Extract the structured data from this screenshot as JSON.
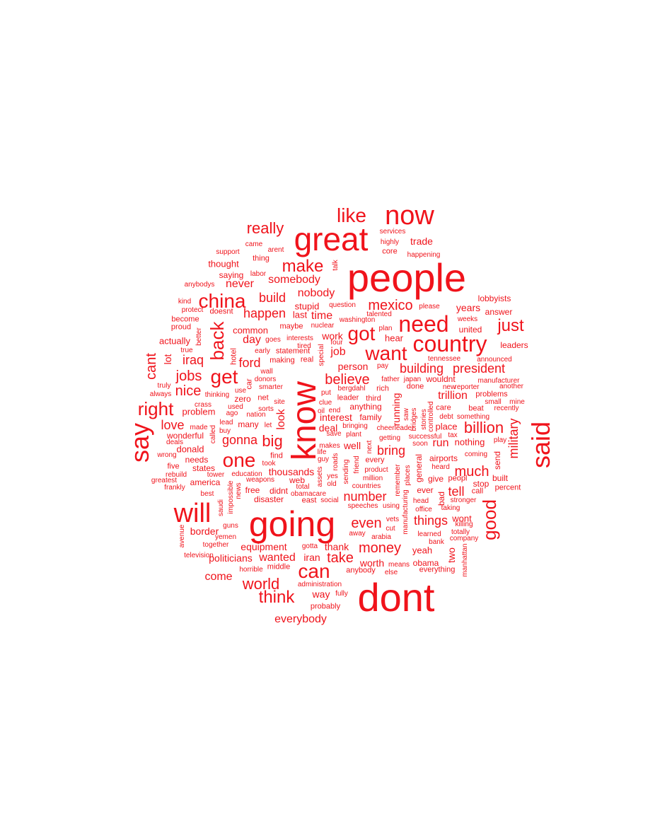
{
  "color": "#f0131b",
  "words": [
    {
      "text": "people",
      "rot": 0
    },
    {
      "text": "dont",
      "rot": 0
    },
    {
      "text": "going",
      "rot": 0
    },
    {
      "text": "know",
      "rot": 90
    },
    {
      "text": "great",
      "rot": 0
    },
    {
      "text": "now",
      "rot": 0
    },
    {
      "text": "said",
      "rot": 90
    },
    {
      "text": "will",
      "rot": 0
    },
    {
      "text": "say",
      "rot": 90
    },
    {
      "text": "country",
      "rot": 0
    },
    {
      "text": "need",
      "rot": 0
    },
    {
      "text": "like",
      "rot": 0
    },
    {
      "text": "china",
      "rot": 0
    },
    {
      "text": "get",
      "rot": 0
    },
    {
      "text": "one",
      "rot": 0
    },
    {
      "text": "can",
      "rot": 0
    },
    {
      "text": "got",
      "rot": 0
    },
    {
      "text": "want",
      "rot": 0
    },
    {
      "text": "back",
      "rot": 90
    },
    {
      "text": "right",
      "rot": 0
    },
    {
      "text": "good",
      "rot": 90
    },
    {
      "text": "make",
      "rot": 0
    },
    {
      "text": "just",
      "rot": 0
    },
    {
      "text": "think",
      "rot": 0
    },
    {
      "text": "world",
      "rot": 0
    },
    {
      "text": "big",
      "rot": 0
    },
    {
      "text": "really",
      "rot": 0
    },
    {
      "text": "billion",
      "rot": 0
    },
    {
      "text": "money",
      "rot": 0
    },
    {
      "text": "even",
      "rot": 0
    },
    {
      "text": "take",
      "rot": 0
    },
    {
      "text": "believe",
      "rot": 0
    },
    {
      "text": "mexico",
      "rot": 0
    },
    {
      "text": "much",
      "rot": 0
    },
    {
      "text": "cant",
      "rot": 90
    },
    {
      "text": "nice",
      "rot": 0
    },
    {
      "text": "jobs",
      "rot": 0
    },
    {
      "text": "build",
      "rot": 0
    },
    {
      "text": "happen",
      "rot": 0
    },
    {
      "text": "gonna",
      "rot": 0
    },
    {
      "text": "ford",
      "rot": 0
    },
    {
      "text": "love",
      "rot": 0
    },
    {
      "text": "things",
      "rot": 0
    },
    {
      "text": "president",
      "rot": 0
    },
    {
      "text": "building",
      "rot": 0
    },
    {
      "text": "military",
      "rot": 90
    },
    {
      "text": "number",
      "rot": 0
    },
    {
      "text": "everybody",
      "rot": 0
    },
    {
      "text": "trillion",
      "rot": 0
    },
    {
      "text": "bring",
      "rot": 0
    },
    {
      "text": "tell",
      "rot": 0
    },
    {
      "text": "somebody",
      "rot": 0
    },
    {
      "text": "iraq",
      "rot": 0
    },
    {
      "text": "time",
      "rot": 0
    },
    {
      "text": "never",
      "rot": 0
    },
    {
      "text": "come",
      "rot": 0
    },
    {
      "text": "wanted",
      "rot": 0
    },
    {
      "text": "politicians",
      "rot": 0
    },
    {
      "text": "equipment",
      "rot": 0
    },
    {
      "text": "thank",
      "rot": 0
    },
    {
      "text": "border",
      "rot": 0
    },
    {
      "text": "thousands",
      "rot": 0
    },
    {
      "text": "nobody",
      "rot": 0
    },
    {
      "text": "trade",
      "rot": 0
    },
    {
      "text": "run",
      "rot": 0
    },
    {
      "text": "person",
      "rot": 0
    },
    {
      "text": "job",
      "rot": 0
    },
    {
      "text": "day",
      "rot": 0
    },
    {
      "text": "look",
      "rot": 90
    },
    {
      "text": "interest",
      "rot": 0
    },
    {
      "text": "deal",
      "rot": 0
    },
    {
      "text": "well",
      "rot": 0
    },
    {
      "text": "running",
      "rot": 90
    },
    {
      "text": "lot",
      "rot": 90
    },
    {
      "text": "two",
      "rot": 90
    },
    {
      "text": "years",
      "rot": 0
    },
    {
      "text": "worth",
      "rot": 0
    },
    {
      "text": "iran",
      "rot": 0
    },
    {
      "text": "way",
      "rot": 0
    },
    {
      "text": "work",
      "rot": 0
    },
    {
      "text": "thought",
      "rot": 0
    },
    {
      "text": "place",
      "rot": 0
    },
    {
      "text": "problem",
      "rot": 0
    },
    {
      "text": "donald",
      "rot": 0
    },
    {
      "text": "yeah",
      "rot": 0
    },
    {
      "text": "nothing",
      "rot": 0
    },
    {
      "text": "wont",
      "rot": 0
    },
    {
      "text": "actually",
      "rot": 0
    },
    {
      "text": "common",
      "rot": 0
    },
    {
      "text": "stupid",
      "rot": 0
    },
    {
      "text": "last",
      "rot": 0
    },
    {
      "text": "hear",
      "rot": 0
    },
    {
      "text": "leaders",
      "rot": 0
    },
    {
      "text": "lobbyists",
      "rot": 0
    },
    {
      "text": "united",
      "rot": 0
    },
    {
      "text": "send",
      "rot": 90
    },
    {
      "text": "america",
      "rot": 0
    },
    {
      "text": "states",
      "rot": 0
    },
    {
      "text": "didnt",
      "rot": 0
    },
    {
      "text": "disaster",
      "rot": 0
    },
    {
      "text": "free",
      "rot": 0
    },
    {
      "text": "web",
      "rot": 0
    },
    {
      "text": "airports",
      "rot": 0
    },
    {
      "text": "give",
      "rot": 0
    },
    {
      "text": "stop",
      "rot": 0
    },
    {
      "text": "obama",
      "rot": 0
    },
    {
      "text": "anything",
      "rot": 0
    },
    {
      "text": "wouldnt",
      "rot": 0
    },
    {
      "text": "saying",
      "rot": 0
    },
    {
      "text": "needs",
      "rot": 0
    },
    {
      "text": "many",
      "rot": 0
    },
    {
      "text": "wonderful",
      "rot": 0
    },
    {
      "text": "answer",
      "rot": 0
    },
    {
      "text": "family",
      "rot": 0
    },
    {
      "text": "built",
      "rot": 0
    },
    {
      "text": "ever",
      "rot": 0
    },
    {
      "text": "general",
      "rot": 90
    },
    {
      "text": "bad",
      "rot": 90
    },
    {
      "text": "everything",
      "rot": 0
    },
    {
      "text": "middle",
      "rot": 0
    },
    {
      "text": "making",
      "rot": 0
    },
    {
      "text": "real",
      "rot": 0
    },
    {
      "text": "leader",
      "rot": 0
    },
    {
      "text": "third",
      "rot": 0
    },
    {
      "text": "zero",
      "rot": 0
    },
    {
      "text": "net",
      "rot": 0
    },
    {
      "text": "beat",
      "rot": 0
    },
    {
      "text": "call",
      "rot": 0
    },
    {
      "text": "car",
      "rot": 90
    },
    {
      "text": "proud",
      "rot": 0
    },
    {
      "text": "doesnt",
      "rot": 0
    },
    {
      "text": "maybe",
      "rot": 0
    },
    {
      "text": "problems",
      "rot": 0
    },
    {
      "text": "percent",
      "rot": 0
    },
    {
      "text": "statement",
      "rot": 0
    },
    {
      "text": "five",
      "rot": 0
    },
    {
      "text": "anybody",
      "rot": 0
    },
    {
      "text": "probably",
      "rot": 0
    },
    {
      "text": "administration",
      "rot": 0
    },
    {
      "text": "hotel",
      "rot": 90
    },
    {
      "text": "better",
      "rot": 90
    },
    {
      "text": "become",
      "rot": 0
    },
    {
      "text": "find",
      "rot": 0
    },
    {
      "text": "rich",
      "rot": 0
    },
    {
      "text": "done",
      "rot": 0
    },
    {
      "text": "core",
      "rot": 0
    },
    {
      "text": "thing",
      "rot": 0
    },
    {
      "text": "east",
      "rot": 0
    },
    {
      "text": "care",
      "rot": 0
    },
    {
      "text": "peopl",
      "rot": 0
    },
    {
      "text": "every",
      "rot": 0
    },
    {
      "text": "cut",
      "rot": 0
    },
    {
      "text": "used",
      "rot": 0
    },
    {
      "text": "wall",
      "rot": 0
    },
    {
      "text": "taking",
      "rot": 0
    },
    {
      "text": "totally",
      "rot": 0
    },
    {
      "text": "heard",
      "rot": 0
    },
    {
      "text": "save",
      "rot": 0
    },
    {
      "text": "learned",
      "rot": 0
    },
    {
      "text": "guns",
      "rot": 0
    },
    {
      "text": "saudi",
      "rot": 90
    },
    {
      "text": "nation",
      "rot": 0
    },
    {
      "text": "nuclear",
      "rot": 0
    },
    {
      "text": "tennessee",
      "rot": 0
    },
    {
      "text": "killing",
      "rot": 0
    },
    {
      "text": "stronger",
      "rot": 0
    },
    {
      "text": "recently",
      "rot": 0
    },
    {
      "text": "announced",
      "rot": 0
    },
    {
      "text": "manufacturer",
      "rot": 0
    },
    {
      "text": "happening",
      "rot": 0
    },
    {
      "text": "services",
      "rot": 0
    },
    {
      "text": "highly",
      "rot": 0
    },
    {
      "text": "please",
      "rot": 0
    },
    {
      "text": "weeks",
      "rot": 0
    },
    {
      "text": "talented",
      "rot": 0
    },
    {
      "text": "question",
      "rot": 0
    },
    {
      "text": "washington",
      "rot": 0
    },
    {
      "text": "support",
      "rot": 0
    },
    {
      "text": "arent",
      "rot": 0
    },
    {
      "text": "came",
      "rot": 0
    },
    {
      "text": "labor",
      "rot": 0
    },
    {
      "text": "talk",
      "rot": 90
    },
    {
      "text": "anybodys",
      "rot": 0
    },
    {
      "text": "protect",
      "rot": 0
    },
    {
      "text": "kind",
      "rot": 0
    },
    {
      "text": "interests",
      "rot": 0
    },
    {
      "text": "goes",
      "rot": 0
    },
    {
      "text": "tired",
      "rot": 0
    },
    {
      "text": "early",
      "rot": 0
    },
    {
      "text": "true",
      "rot": 0
    },
    {
      "text": "truly",
      "rot": 0
    },
    {
      "text": "always",
      "rot": 0
    },
    {
      "text": "thinking",
      "rot": 0
    },
    {
      "text": "use",
      "rot": 0
    },
    {
      "text": "smarter",
      "rot": 0
    },
    {
      "text": "donors",
      "rot": 0
    },
    {
      "text": "site",
      "rot": 0
    },
    {
      "text": "crass",
      "rot": 0
    },
    {
      "text": "ago",
      "rot": 0
    },
    {
      "text": "sorts",
      "rot": 0
    },
    {
      "text": "lead",
      "rot": 0
    },
    {
      "text": "made",
      "rot": 0
    },
    {
      "text": "buy",
      "rot": 0
    },
    {
      "text": "called",
      "rot": 90
    },
    {
      "text": "let",
      "rot": 0
    },
    {
      "text": "deals",
      "rot": 0
    },
    {
      "text": "wrong",
      "rot": 0
    },
    {
      "text": "rebuild",
      "rot": 0
    },
    {
      "text": "greatest",
      "rot": 0
    },
    {
      "text": "frankly",
      "rot": 0
    },
    {
      "text": "tower",
      "rot": 0
    },
    {
      "text": "best",
      "rot": 0
    },
    {
      "text": "impossible",
      "rot": 90
    },
    {
      "text": "news",
      "rot": 90
    },
    {
      "text": "education",
      "rot": 0
    },
    {
      "text": "weapons",
      "rot": 0
    },
    {
      "text": "took",
      "rot": 0
    },
    {
      "text": "total",
      "rot": 0
    },
    {
      "text": "obamacare",
      "rot": 0
    },
    {
      "text": "social",
      "rot": 0
    },
    {
      "text": "old",
      "rot": 0
    },
    {
      "text": "yes",
      "rot": 0
    },
    {
      "text": "guy",
      "rot": 0
    },
    {
      "text": "life",
      "rot": 0
    },
    {
      "text": "makes",
      "rot": 0
    },
    {
      "text": "assets",
      "rot": 90
    },
    {
      "text": "roads",
      "rot": 90
    },
    {
      "text": "sending",
      "rot": 90
    },
    {
      "text": "friend",
      "rot": 90
    },
    {
      "text": "next",
      "rot": 90
    },
    {
      "text": "product",
      "rot": 0
    },
    {
      "text": "million",
      "rot": 0
    },
    {
      "text": "countries",
      "rot": 0
    },
    {
      "text": "speeches",
      "rot": 0
    },
    {
      "text": "using",
      "rot": 0
    },
    {
      "text": "vets",
      "rot": 0
    },
    {
      "text": "away",
      "rot": 0
    },
    {
      "text": "arabia",
      "rot": 0
    },
    {
      "text": "manufacturing",
      "rot": 90
    },
    {
      "text": "remember",
      "rot": 90
    },
    {
      "text": "places",
      "rot": 90
    },
    {
      "text": "head",
      "rot": 0
    },
    {
      "text": "office",
      "rot": 0
    },
    {
      "text": "bank",
      "rot": 0
    },
    {
      "text": "company",
      "rot": 0
    },
    {
      "text": "manhattan",
      "rot": 90
    },
    {
      "text": "means",
      "rot": 0
    },
    {
      "text": "else",
      "rot": 0
    },
    {
      "text": "horrible",
      "rot": 0
    },
    {
      "text": "gotta",
      "rot": 0
    },
    {
      "text": "together",
      "rot": 0
    },
    {
      "text": "yemen",
      "rot": 0
    },
    {
      "text": "avenue",
      "rot": 90
    },
    {
      "text": "television",
      "rot": 0
    },
    {
      "text": "fully",
      "rot": 0
    },
    {
      "text": "special",
      "rot": 90
    },
    {
      "text": "four",
      "rot": 0
    },
    {
      "text": "plan",
      "rot": 0
    },
    {
      "text": "put",
      "rot": 0
    },
    {
      "text": "bergdahl",
      "rot": 0
    },
    {
      "text": "father",
      "rot": 0
    },
    {
      "text": "japan",
      "rot": 0
    },
    {
      "text": "saw",
      "rot": 90
    },
    {
      "text": "bridges",
      "rot": 90
    },
    {
      "text": "stories",
      "rot": 90
    },
    {
      "text": "controlled",
      "rot": 90
    },
    {
      "text": "new",
      "rot": 0
    },
    {
      "text": "reporter",
      "rot": 0
    },
    {
      "text": "another",
      "rot": 0
    },
    {
      "text": "small",
      "rot": 0
    },
    {
      "text": "mine",
      "rot": 0
    },
    {
      "text": "something",
      "rot": 0
    },
    {
      "text": "debt",
      "rot": 0
    },
    {
      "text": "successful",
      "rot": 0
    },
    {
      "text": "tax",
      "rot": 0
    },
    {
      "text": "soon",
      "rot": 0
    },
    {
      "text": "getting",
      "rot": 0
    },
    {
      "text": "cheerleader",
      "rot": 0
    },
    {
      "text": "bringing",
      "rot": 0
    },
    {
      "text": "plant",
      "rot": 0
    },
    {
      "text": "clue",
      "rot": 0
    },
    {
      "text": "oil",
      "rot": 0
    },
    {
      "text": "end",
      "rot": 0
    },
    {
      "text": "pay",
      "rot": 0
    },
    {
      "text": "coming",
      "rot": 0
    },
    {
      "text": "play",
      "rot": 0
    }
  ]
}
